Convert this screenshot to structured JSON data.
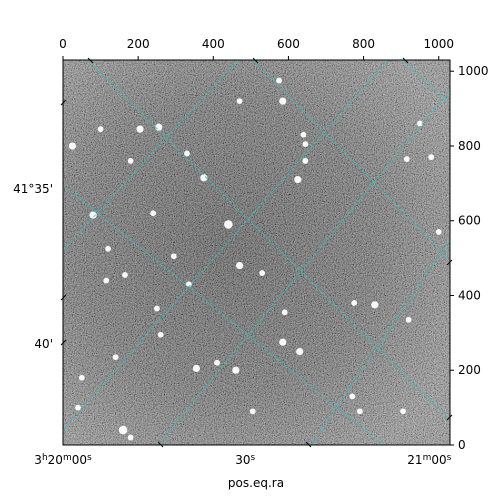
{
  "chart_data": {
    "type": "heatmap",
    "title": "",
    "xlabel": "pos.eq.ra",
    "ylabel": "",
    "colormap": "gray",
    "pixel_axis_x": {
      "range": [
        0,
        1030
      ],
      "ticks": [
        0,
        200,
        400,
        600,
        800,
        1000
      ],
      "tick_labels": [
        "0",
        "200",
        "400",
        "600",
        "800",
        "1000"
      ]
    },
    "pixel_axis_y": {
      "range": [
        0,
        1030
      ],
      "ticks": [
        0,
        200,
        400,
        600,
        800,
        1000
      ],
      "tick_labels": [
        "0",
        "200",
        "400",
        "600",
        "800",
        "1000"
      ]
    },
    "ra_ticks": [
      {
        "label_h": "3",
        "label_m": "20",
        "label_s": "00",
        "x": 0
      },
      {
        "label_s": "30",
        "x": 485
      },
      {
        "label_h": "",
        "label_m": "21",
        "label_s": "00",
        "x": 975
      }
    ],
    "dec_ticks": [
      {
        "label": "41°35'",
        "y": 685
      },
      {
        "label": "40'",
        "y": 270
      }
    ],
    "grid": true,
    "grid_color": "#2ec4c4",
    "stars": [
      {
        "x": 25,
        "y": 800,
        "s": 4
      },
      {
        "x": 100,
        "y": 845,
        "s": 3
      },
      {
        "x": 80,
        "y": 615,
        "s": 4
      },
      {
        "x": 115,
        "y": 440,
        "s": 3
      },
      {
        "x": 165,
        "y": 455,
        "s": 3
      },
      {
        "x": 180,
        "y": 760,
        "s": 3
      },
      {
        "x": 205,
        "y": 845,
        "s": 4
      },
      {
        "x": 255,
        "y": 850,
        "s": 4
      },
      {
        "x": 330,
        "y": 780,
        "s": 3
      },
      {
        "x": 375,
        "y": 715,
        "s": 4
      },
      {
        "x": 440,
        "y": 590,
        "s": 5
      },
      {
        "x": 470,
        "y": 920,
        "s": 3
      },
      {
        "x": 585,
        "y": 920,
        "s": 4
      },
      {
        "x": 625,
        "y": 710,
        "s": 4
      },
      {
        "x": 645,
        "y": 805,
        "s": 3
      },
      {
        "x": 645,
        "y": 760,
        "s": 3
      },
      {
        "x": 640,
        "y": 830,
        "s": 3
      },
      {
        "x": 355,
        "y": 205,
        "s": 4
      },
      {
        "x": 295,
        "y": 505,
        "s": 3
      },
      {
        "x": 260,
        "y": 295,
        "s": 3
      },
      {
        "x": 335,
        "y": 430,
        "s": 3
      },
      {
        "x": 470,
        "y": 480,
        "s": 4
      },
      {
        "x": 585,
        "y": 275,
        "s": 4
      },
      {
        "x": 630,
        "y": 250,
        "s": 4
      },
      {
        "x": 460,
        "y": 200,
        "s": 4
      },
      {
        "x": 505,
        "y": 90,
        "s": 3
      },
      {
        "x": 160,
        "y": 40,
        "s": 5
      },
      {
        "x": 40,
        "y": 100,
        "s": 3
      },
      {
        "x": 50,
        "y": 180,
        "s": 3
      },
      {
        "x": 180,
        "y": 20,
        "s": 3
      },
      {
        "x": 770,
        "y": 130,
        "s": 3
      },
      {
        "x": 775,
        "y": 380,
        "s": 3
      },
      {
        "x": 830,
        "y": 375,
        "s": 4
      },
      {
        "x": 915,
        "y": 765,
        "s": 3
      },
      {
        "x": 980,
        "y": 770,
        "s": 3
      },
      {
        "x": 1000,
        "y": 570,
        "s": 3
      },
      {
        "x": 920,
        "y": 335,
        "s": 3
      },
      {
        "x": 905,
        "y": 90,
        "s": 3
      },
      {
        "x": 790,
        "y": 90,
        "s": 3
      },
      {
        "x": 410,
        "y": 220,
        "s": 3
      },
      {
        "x": 590,
        "y": 355,
        "s": 3
      },
      {
        "x": 250,
        "y": 365,
        "s": 3
      },
      {
        "x": 530,
        "y": 460,
        "s": 3
      },
      {
        "x": 240,
        "y": 620,
        "s": 3
      },
      {
        "x": 140,
        "y": 235,
        "s": 3
      },
      {
        "x": 120,
        "y": 525,
        "s": 3
      },
      {
        "x": 950,
        "y": 860,
        "s": 3
      },
      {
        "x": 575,
        "y": 975,
        "s": 3
      }
    ]
  }
}
